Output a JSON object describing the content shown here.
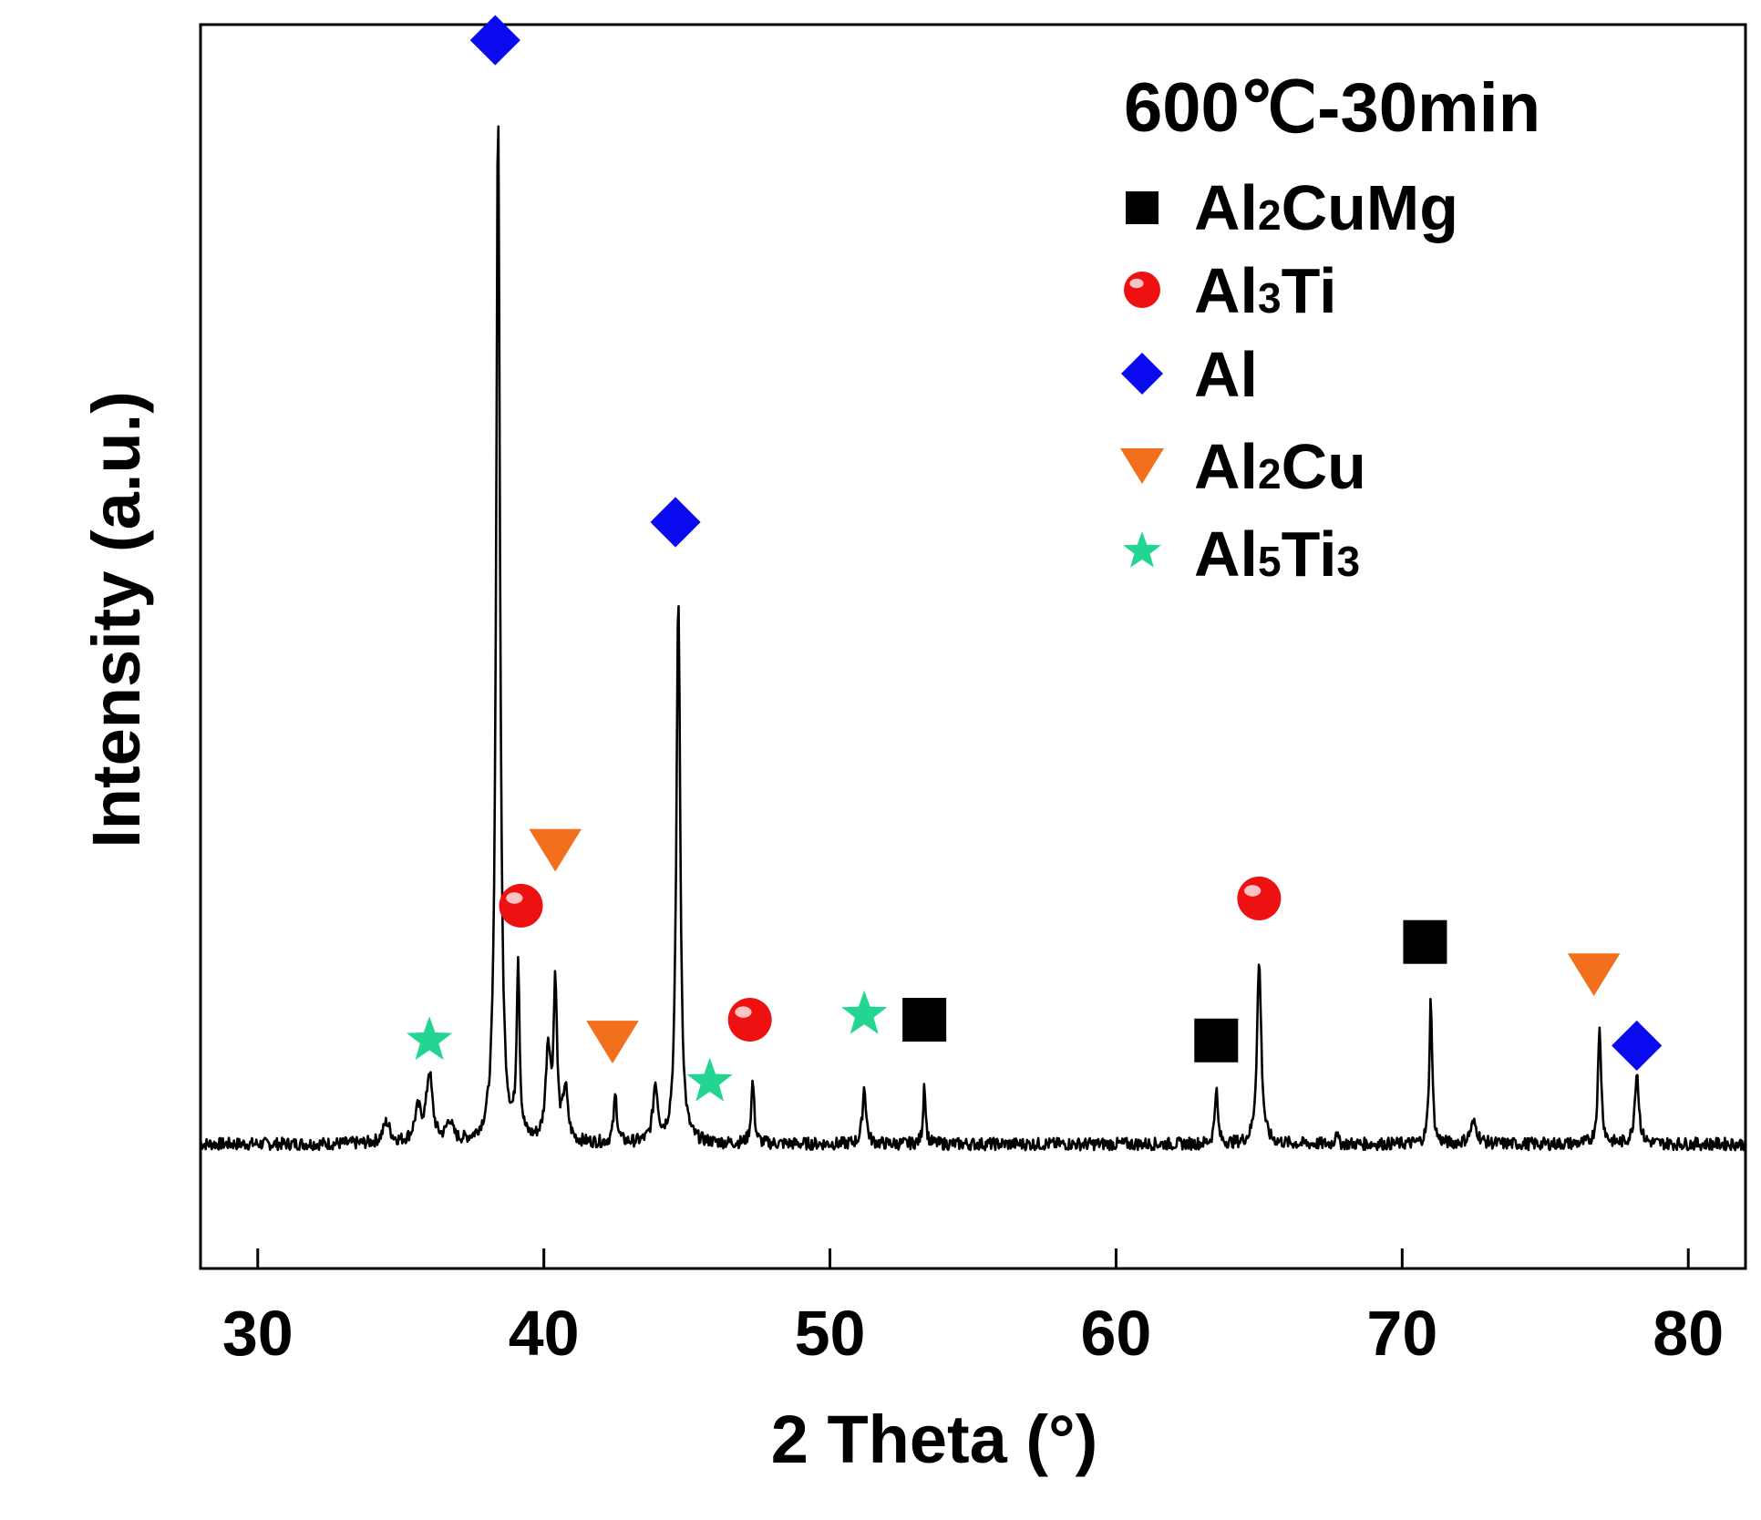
{
  "chart_data": {
    "type": "line",
    "title": "600℃-30min",
    "xlabel": "2 Theta (°)",
    "ylabel": "Intensity (a.u.)",
    "xlim": [
      28,
      82
    ],
    "ylim": [
      -0.12,
      1.08
    ],
    "xticks": [
      30,
      40,
      50,
      60,
      70,
      80
    ],
    "baseline": 0.0,
    "noise_amplitude": 0.006,
    "peaks": [
      {
        "x": 34.5,
        "h": 0.02,
        "w": 0.3
      },
      {
        "x": 35.6,
        "h": 0.03,
        "w": 0.3
      },
      {
        "x": 36.0,
        "h": 0.065,
        "w": 0.25
      },
      {
        "x": 36.7,
        "h": 0.02,
        "w": 0.25
      },
      {
        "x": 38.4,
        "h": 1.0,
        "w": 0.16
      },
      {
        "x": 39.1,
        "h": 0.17,
        "w": 0.12
      },
      {
        "x": 40.15,
        "h": 0.09,
        "w": 0.2
      },
      {
        "x": 40.4,
        "h": 0.15,
        "w": 0.14
      },
      {
        "x": 40.75,
        "h": 0.05,
        "w": 0.2
      },
      {
        "x": 42.5,
        "h": 0.045,
        "w": 0.14
      },
      {
        "x": 43.9,
        "h": 0.055,
        "w": 0.2
      },
      {
        "x": 44.7,
        "h": 0.53,
        "w": 0.16
      },
      {
        "x": 47.3,
        "h": 0.06,
        "w": 0.13
      },
      {
        "x": 51.2,
        "h": 0.055,
        "w": 0.15
      },
      {
        "x": 53.3,
        "h": 0.06,
        "w": 0.1
      },
      {
        "x": 63.5,
        "h": 0.055,
        "w": 0.12
      },
      {
        "x": 65.0,
        "h": 0.175,
        "w": 0.18
      },
      {
        "x": 67.7,
        "h": 0.015,
        "w": 0.08
      },
      {
        "x": 71.0,
        "h": 0.14,
        "w": 0.12
      },
      {
        "x": 72.5,
        "h": 0.02,
        "w": 0.3
      },
      {
        "x": 76.9,
        "h": 0.11,
        "w": 0.14
      },
      {
        "x": 78.2,
        "h": 0.07,
        "w": 0.17
      }
    ],
    "legend": {
      "placement": "top-right",
      "title": "600℃-30min",
      "entries": [
        {
          "marker": "square",
          "color": "#000000",
          "label": "Al",
          "sub1": "2",
          "rest": "CuMg"
        },
        {
          "marker": "sphere",
          "color": "#ee1111",
          "label": "Al",
          "sub1": "3",
          "rest": "Ti"
        },
        {
          "marker": "diamond",
          "color": "#0a0aee",
          "label": "Al",
          "sub1": "",
          "rest": ""
        },
        {
          "marker": "triangle-down",
          "color": "#f26f1e",
          "label": "Al",
          "sub1": "2",
          "rest": "Cu"
        },
        {
          "marker": "star",
          "color": "#22d691",
          "label": "Al",
          "sub1": "5",
          "rest": "Ti",
          "sub2": "3"
        }
      ]
    },
    "annotations": [
      {
        "marker": "diamond",
        "x": 38.3,
        "y": 1.065
      },
      {
        "marker": "diamond",
        "x": 44.6,
        "y": 0.6
      },
      {
        "marker": "diamond",
        "x": 78.2,
        "y": 0.095
      },
      {
        "marker": "sphere",
        "x": 39.2,
        "y": 0.23
      },
      {
        "marker": "sphere",
        "x": 47.2,
        "y": 0.12
      },
      {
        "marker": "sphere",
        "x": 65.0,
        "y": 0.237
      },
      {
        "marker": "triangle-down",
        "x": 40.4,
        "y": 0.285
      },
      {
        "marker": "triangle-down",
        "x": 42.4,
        "y": 0.1
      },
      {
        "marker": "triangle-down",
        "x": 76.7,
        "y": 0.165
      },
      {
        "marker": "square",
        "x": 53.3,
        "y": 0.12
      },
      {
        "marker": "square",
        "x": 63.5,
        "y": 0.1
      },
      {
        "marker": "square",
        "x": 70.8,
        "y": 0.195
      },
      {
        "marker": "star",
        "x": 36.0,
        "y": 0.1
      },
      {
        "marker": "star",
        "x": 45.8,
        "y": 0.06
      },
      {
        "marker": "star",
        "x": 51.2,
        "y": 0.125
      }
    ],
    "colors": {
      "square": "#000000",
      "sphere": "#ee1111",
      "diamond": "#0a0aee",
      "triangle-down": "#f26f1e",
      "star": "#22d691",
      "line": "#000000"
    }
  }
}
